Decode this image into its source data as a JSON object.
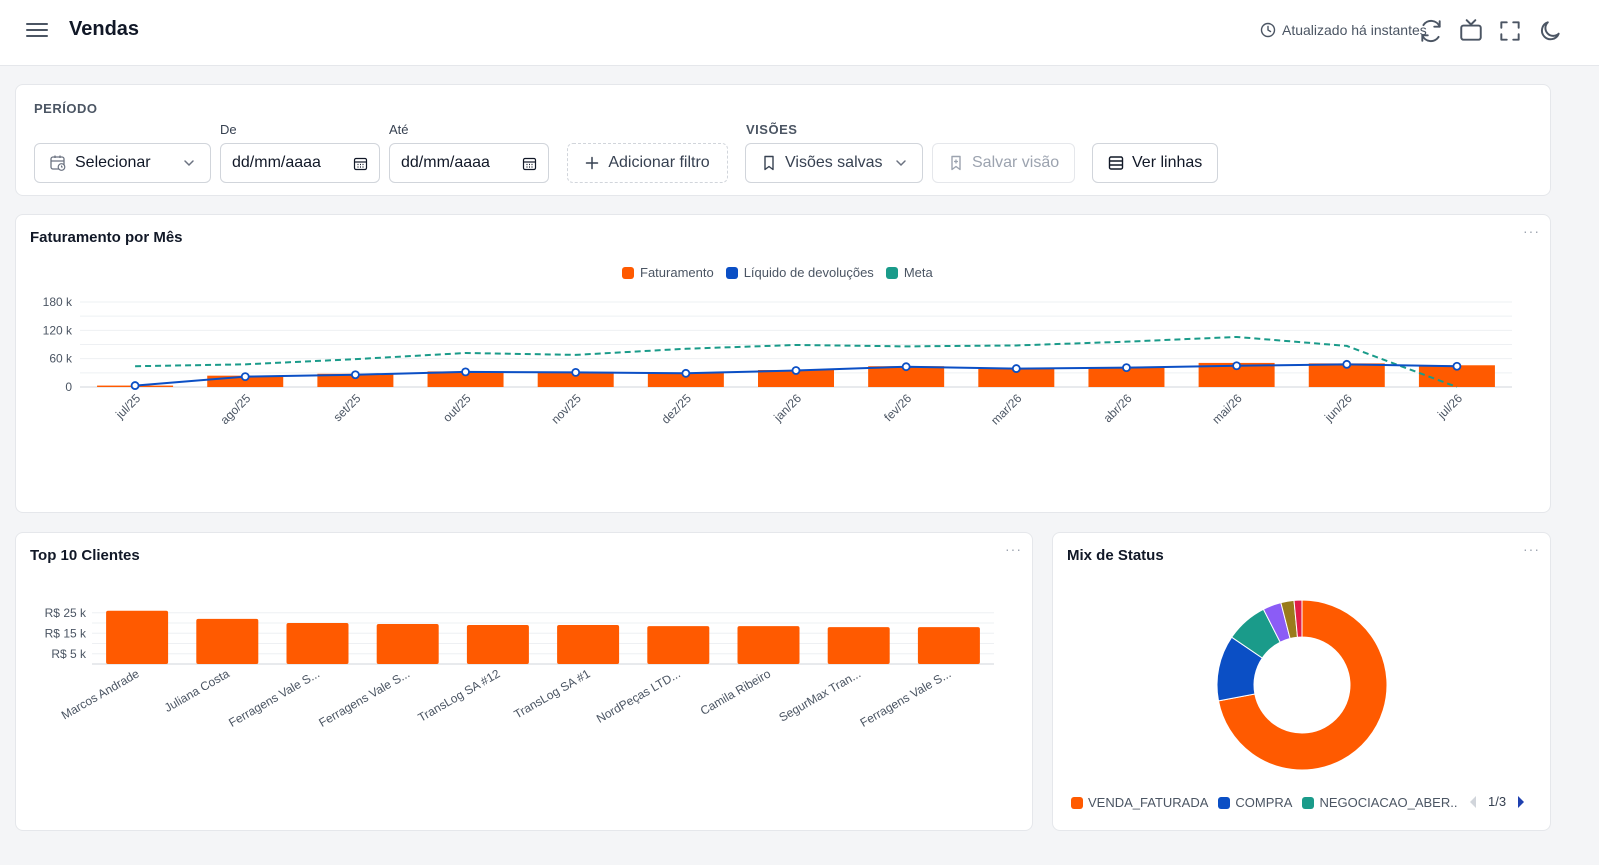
{
  "header": {
    "title": "Vendas",
    "updated_text": "Atualizado há instantes",
    "icons": [
      "menu-icon",
      "clock-icon",
      "refresh-icon",
      "tv-icon",
      "fullscreen-icon",
      "moon-icon"
    ]
  },
  "filters": {
    "periodo_label": "PERÍODO",
    "period_select": "Selecionar",
    "de_label": "De",
    "ate_label": "Até",
    "de_placeholder": "dd/mm/aaaa",
    "ate_placeholder": "dd/mm/aaaa",
    "add_filter": "Adicionar filtro",
    "visoes_label": "VISÕES",
    "saved_views": "Visões salvas",
    "save_view": "Salvar visão",
    "view_rows": "Ver linhas"
  },
  "colors": {
    "faturamento": "#ff5a00",
    "liquido": "#0b4fc5",
    "meta": "#1a9b8a",
    "purple": "#8b5cf6",
    "olive": "#9a7b1c",
    "pink": "#e11d48"
  },
  "monthly": {
    "title": "Faturamento por Mês",
    "more": "···",
    "legend": [
      "Faturamento",
      "Líquido de devoluções",
      "Meta"
    ]
  },
  "top_clients": {
    "title": "Top 10 Clientes",
    "more": "···"
  },
  "status_mix": {
    "title": "Mix de Status",
    "more": "···",
    "legend": [
      "VENDA_FATURADA",
      "COMPRA",
      "NEGOCIACAO_ABER.."
    ],
    "pager": "1/3"
  },
  "chart_data": [
    {
      "type": "bar",
      "title": "Faturamento por Mês",
      "categories": [
        "jul/25",
        "ago/25",
        "set/25",
        "out/25",
        "nov/25",
        "dez/25",
        "jan/26",
        "fev/26",
        "mar/26",
        "abr/26",
        "mai/26",
        "jun/26",
        "jul/26"
      ],
      "series": [
        {
          "name": "Faturamento",
          "type": "bar",
          "values": [
            3000,
            24000,
            28000,
            33000,
            32000,
            30000,
            36000,
            44000,
            40000,
            42000,
            51000,
            50000,
            46000
          ]
        },
        {
          "name": "Líquido de devoluções",
          "type": "line",
          "values": [
            3000,
            22000,
            26000,
            32000,
            31000,
            29000,
            35000,
            43000,
            39000,
            41000,
            45000,
            48000,
            44000
          ]
        },
        {
          "name": "Meta",
          "type": "line-dashed",
          "values": [
            44000,
            48000,
            59000,
            72000,
            68000,
            81000,
            89000,
            86000,
            88000,
            96000,
            106000,
            87000,
            0
          ]
        }
      ],
      "yticks": [
        "0",
        "60 k",
        "120 k",
        "180 k"
      ],
      "ylim": [
        0,
        200000
      ],
      "legend_position": "top-center",
      "grid": true
    },
    {
      "type": "bar",
      "title": "Top 10 Clientes",
      "categories": [
        "Marcos Andrade",
        "Juliana Costa",
        "Ferragens Vale S...",
        "Ferragens Vale S...",
        "TransLog SA #12",
        "TransLog SA #1",
        "NordPeças LTD...",
        "Camila Ribeiro",
        "SegurMax Tran...",
        "Ferragens Vale S..."
      ],
      "values": [
        26000,
        22000,
        20000,
        19500,
        19000,
        19000,
        18500,
        18500,
        18000,
        18000
      ],
      "yticks": [
        "R$ 5 k",
        "R$ 15 k",
        "R$ 25 k"
      ],
      "ylim": [
        0,
        27000
      ],
      "grid": true
    },
    {
      "type": "pie",
      "title": "Mix de Status",
      "labels": [
        "VENDA_FATURADA",
        "COMPRA",
        "NEGOCIACAO_ABER..",
        "",
        "",
        ""
      ],
      "values": [
        72,
        12.5,
        8,
        3.5,
        2.5,
        1.5
      ],
      "donut": true,
      "legend_position": "bottom"
    }
  ]
}
